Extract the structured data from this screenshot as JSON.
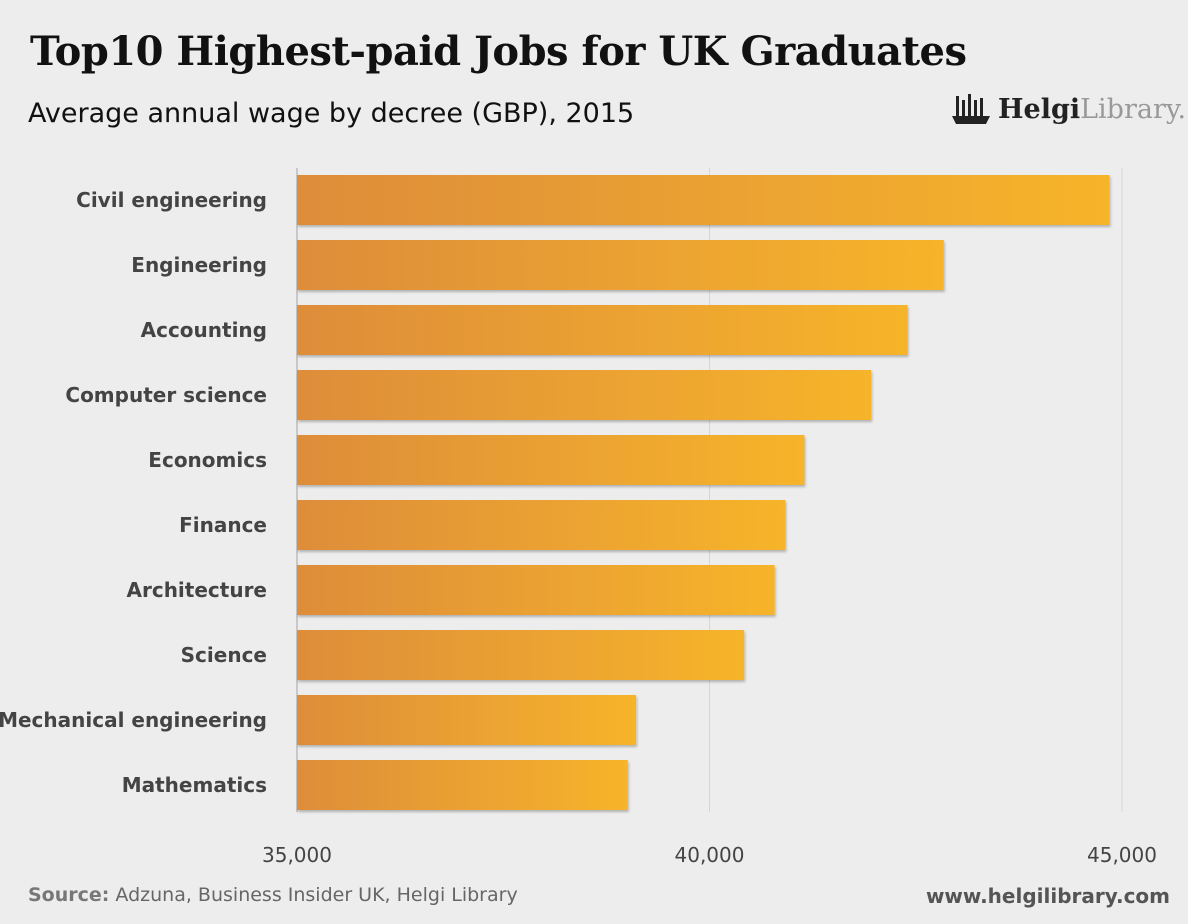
{
  "title": "Top10 Highest-paid Jobs for UK Graduates",
  "subtitle": "Average annual wage by decree (GBP), 2015",
  "logo": {
    "bold": "Helgi",
    "light": "Library."
  },
  "footer": {
    "source_label": "Source:",
    "source": " Adzuna, Business Insider UK, Helgi Library",
    "url": "www.helgilibrary.com"
  },
  "colors": {
    "bar_start": "#de8d3a",
    "bar_end": "#f6b42a",
    "grid": "#d6d6d6"
  },
  "chart_data": {
    "type": "bar",
    "orientation": "horizontal",
    "title": "Top10 Highest-paid Jobs for UK Graduates",
    "subtitle": "Average annual wage by decree (GBP), 2015",
    "xlabel": "",
    "ylabel": "",
    "xlim": [
      35000,
      45000
    ],
    "ticks": [
      35000,
      40000,
      45000
    ],
    "tick_labels": [
      "35,000",
      "40,000",
      "45,000"
    ],
    "grid": true,
    "categories": [
      "Civil engineering",
      "Engineering",
      "Accounting",
      "Computer science",
      "Economics",
      "Finance",
      "Architecture",
      "Science",
      "Mechanical engineering",
      "Mathematics"
    ],
    "values": [
      44850,
      42840,
      42400,
      41960,
      41150,
      40920,
      40790,
      40420,
      39110,
      39010
    ]
  }
}
